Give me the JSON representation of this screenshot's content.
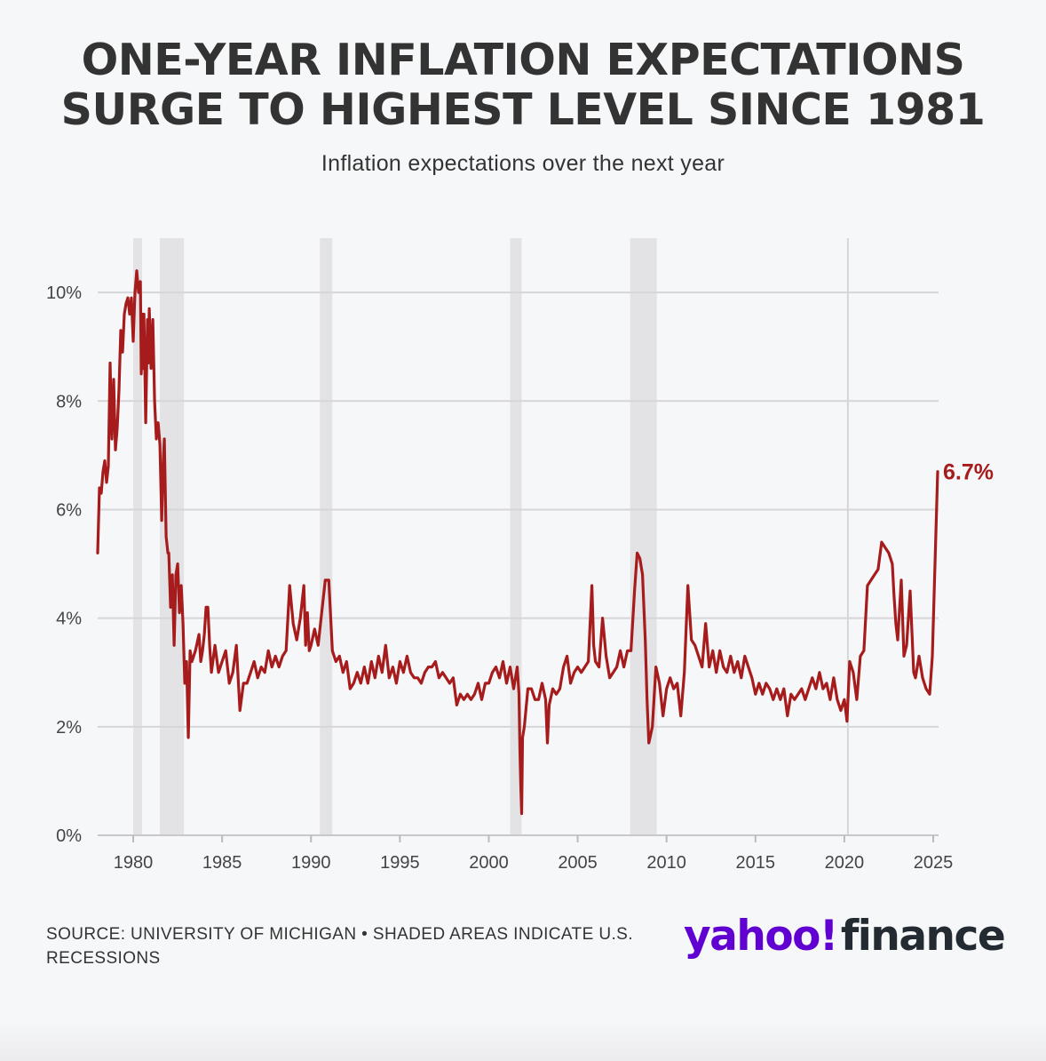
{
  "title_lines": [
    "ONE-YEAR INFLATION EXPECTATIONS",
    "SURGE TO HIGHEST LEVEL SINCE 1981"
  ],
  "subtitle": "Inflation expectations over the next year",
  "footer": {
    "source": "SOURCE: UNIVERSITY OF MICHIGAN • SHADED AREAS INDICATE U.S. RECESSIONS"
  },
  "logo": {
    "left": "yahoo!",
    "right": "finance"
  },
  "colors": {
    "line": "#a61c1c",
    "recession": "#e3e3e5",
    "grid": "#d6d6d8",
    "text": "#333333",
    "logo_purple": "#6001d2"
  },
  "chart_data": {
    "type": "line",
    "title": "ONE-YEAR INFLATION EXPECTATIONS SURGE TO HIGHEST LEVEL SINCE 1981",
    "subtitle": "Inflation expectations over the next year",
    "xlabel": "",
    "ylabel": "",
    "xlim": [
      1978,
      2025.3
    ],
    "ylim": [
      0,
      11
    ],
    "x_ticks": [
      1980,
      1985,
      1990,
      1995,
      2000,
      2005,
      2010,
      2015,
      2020,
      2025
    ],
    "y_ticks": [
      0,
      2,
      4,
      6,
      8,
      10
    ],
    "y_tick_labels": [
      "0%",
      "2%",
      "4%",
      "6%",
      "8%",
      "10%"
    ],
    "grid": true,
    "reference_year_line": 2020.2,
    "recessions": [
      [
        1980.0,
        1980.5
      ],
      [
        1981.5,
        1982.85
      ],
      [
        1990.5,
        1991.2
      ],
      [
        2001.2,
        2001.85
      ],
      [
        2007.95,
        2009.45
      ]
    ],
    "annotation": {
      "label": "6.7%",
      "x": 2025.25,
      "y": 6.7
    },
    "series": [
      {
        "name": "One-year inflation expectations",
        "points": [
          [
            1978.0,
            5.2
          ],
          [
            1978.1,
            6.4
          ],
          [
            1978.2,
            6.3
          ],
          [
            1978.3,
            6.7
          ],
          [
            1978.4,
            6.9
          ],
          [
            1978.5,
            6.5
          ],
          [
            1978.6,
            6.8
          ],
          [
            1978.7,
            8.7
          ],
          [
            1978.8,
            7.3
          ],
          [
            1978.9,
            8.4
          ],
          [
            1979.0,
            7.1
          ],
          [
            1979.1,
            7.5
          ],
          [
            1979.2,
            8.2
          ],
          [
            1979.3,
            9.3
          ],
          [
            1979.4,
            8.9
          ],
          [
            1979.5,
            9.6
          ],
          [
            1979.6,
            9.8
          ],
          [
            1979.7,
            9.9
          ],
          [
            1979.8,
            9.6
          ],
          [
            1979.9,
            9.9
          ],
          [
            1980.0,
            9.1
          ],
          [
            1980.1,
            10.0
          ],
          [
            1980.2,
            10.4
          ],
          [
            1980.3,
            10.0
          ],
          [
            1980.4,
            10.2
          ],
          [
            1980.45,
            8.5
          ],
          [
            1980.5,
            9.6
          ],
          [
            1980.55,
            8.6
          ],
          [
            1980.6,
            9.6
          ],
          [
            1980.7,
            7.6
          ],
          [
            1980.8,
            9.5
          ],
          [
            1980.85,
            8.7
          ],
          [
            1980.9,
            9.7
          ],
          [
            1981.0,
            8.6
          ],
          [
            1981.1,
            9.5
          ],
          [
            1981.2,
            8.0
          ],
          [
            1981.3,
            7.3
          ],
          [
            1981.4,
            7.6
          ],
          [
            1981.5,
            7.2
          ],
          [
            1981.6,
            5.8
          ],
          [
            1981.7,
            7.0
          ],
          [
            1981.75,
            7.3
          ],
          [
            1981.85,
            5.5
          ],
          [
            1981.95,
            5.2
          ],
          [
            1982.0,
            5.2
          ],
          [
            1982.1,
            4.2
          ],
          [
            1982.2,
            4.8
          ],
          [
            1982.3,
            3.5
          ],
          [
            1982.4,
            4.8
          ],
          [
            1982.5,
            5.0
          ],
          [
            1982.6,
            4.1
          ],
          [
            1982.7,
            4.6
          ],
          [
            1982.8,
            3.9
          ],
          [
            1982.9,
            2.8
          ],
          [
            1983.0,
            3.2
          ],
          [
            1983.1,
            1.8
          ],
          [
            1983.2,
            3.4
          ],
          [
            1983.3,
            3.2
          ],
          [
            1983.5,
            3.4
          ],
          [
            1983.7,
            3.7
          ],
          [
            1983.8,
            3.2
          ],
          [
            1983.9,
            3.4
          ],
          [
            1984.0,
            3.7
          ],
          [
            1984.1,
            4.2
          ],
          [
            1984.2,
            4.2
          ],
          [
            1984.3,
            3.5
          ],
          [
            1984.4,
            3.0
          ],
          [
            1984.6,
            3.5
          ],
          [
            1984.8,
            3.0
          ],
          [
            1985.0,
            3.2
          ],
          [
            1985.2,
            3.4
          ],
          [
            1985.4,
            2.8
          ],
          [
            1985.6,
            3.0
          ],
          [
            1985.8,
            3.5
          ],
          [
            1985.9,
            2.9
          ],
          [
            1986.0,
            2.3
          ],
          [
            1986.2,
            2.8
          ],
          [
            1986.4,
            2.8
          ],
          [
            1986.6,
            3.0
          ],
          [
            1986.8,
            3.2
          ],
          [
            1987.0,
            2.9
          ],
          [
            1987.2,
            3.1
          ],
          [
            1987.4,
            3.0
          ],
          [
            1987.6,
            3.4
          ],
          [
            1987.8,
            3.1
          ],
          [
            1988.0,
            3.3
          ],
          [
            1988.2,
            3.1
          ],
          [
            1988.4,
            3.3
          ],
          [
            1988.6,
            3.4
          ],
          [
            1988.8,
            4.6
          ],
          [
            1989.0,
            3.9
          ],
          [
            1989.2,
            3.6
          ],
          [
            1989.4,
            4.0
          ],
          [
            1989.6,
            4.6
          ],
          [
            1989.7,
            3.5
          ],
          [
            1989.8,
            4.1
          ],
          [
            1989.9,
            3.4
          ],
          [
            1990.0,
            3.5
          ],
          [
            1990.2,
            3.8
          ],
          [
            1990.4,
            3.5
          ],
          [
            1990.6,
            4.1
          ],
          [
            1990.8,
            4.7
          ],
          [
            1991.0,
            4.7
          ],
          [
            1991.2,
            3.4
          ],
          [
            1991.4,
            3.2
          ],
          [
            1991.6,
            3.3
          ],
          [
            1991.8,
            3.0
          ],
          [
            1992.0,
            3.2
          ],
          [
            1992.2,
            2.7
          ],
          [
            1992.4,
            2.8
          ],
          [
            1992.6,
            3.0
          ],
          [
            1992.8,
            2.8
          ],
          [
            1993.0,
            3.1
          ],
          [
            1993.2,
            2.8
          ],
          [
            1993.4,
            3.2
          ],
          [
            1993.6,
            2.9
          ],
          [
            1993.8,
            3.3
          ],
          [
            1994.0,
            3.0
          ],
          [
            1994.2,
            3.5
          ],
          [
            1994.4,
            2.9
          ],
          [
            1994.6,
            3.1
          ],
          [
            1994.8,
            2.8
          ],
          [
            1995.0,
            3.2
          ],
          [
            1995.2,
            3.0
          ],
          [
            1995.4,
            3.3
          ],
          [
            1995.6,
            3.0
          ],
          [
            1995.8,
            2.9
          ],
          [
            1996.0,
            2.9
          ],
          [
            1996.2,
            2.8
          ],
          [
            1996.4,
            3.0
          ],
          [
            1996.6,
            3.1
          ],
          [
            1996.8,
            3.1
          ],
          [
            1997.0,
            3.2
          ],
          [
            1997.2,
            2.9
          ],
          [
            1997.4,
            3.0
          ],
          [
            1997.6,
            2.9
          ],
          [
            1997.8,
            2.8
          ],
          [
            1998.0,
            2.9
          ],
          [
            1998.2,
            2.4
          ],
          [
            1998.4,
            2.6
          ],
          [
            1998.6,
            2.5
          ],
          [
            1998.8,
            2.6
          ],
          [
            1999.0,
            2.5
          ],
          [
            1999.2,
            2.6
          ],
          [
            1999.4,
            2.8
          ],
          [
            1999.6,
            2.5
          ],
          [
            1999.8,
            2.8
          ],
          [
            2000.0,
            2.8
          ],
          [
            2000.2,
            3.0
          ],
          [
            2000.4,
            3.1
          ],
          [
            2000.6,
            2.9
          ],
          [
            2000.8,
            3.2
          ],
          [
            2001.0,
            2.8
          ],
          [
            2001.2,
            3.1
          ],
          [
            2001.4,
            2.7
          ],
          [
            2001.6,
            3.1
          ],
          [
            2001.7,
            2.6
          ],
          [
            2001.75,
            1.6
          ],
          [
            2001.8,
            0.9
          ],
          [
            2001.85,
            0.4
          ],
          [
            2001.9,
            1.8
          ],
          [
            2002.0,
            2.0
          ],
          [
            2002.2,
            2.7
          ],
          [
            2002.4,
            2.7
          ],
          [
            2002.6,
            2.5
          ],
          [
            2002.8,
            2.5
          ],
          [
            2003.0,
            2.8
          ],
          [
            2003.2,
            2.5
          ],
          [
            2003.3,
            1.7
          ],
          [
            2003.4,
            2.4
          ],
          [
            2003.6,
            2.7
          ],
          [
            2003.8,
            2.6
          ],
          [
            2004.0,
            2.7
          ],
          [
            2004.2,
            3.1
          ],
          [
            2004.4,
            3.3
          ],
          [
            2004.6,
            2.8
          ],
          [
            2004.8,
            3.0
          ],
          [
            2005.0,
            3.1
          ],
          [
            2005.2,
            3.0
          ],
          [
            2005.4,
            3.1
          ],
          [
            2005.6,
            3.2
          ],
          [
            2005.8,
            4.6
          ],
          [
            2005.9,
            3.5
          ],
          [
            2006.0,
            3.2
          ],
          [
            2006.2,
            3.1
          ],
          [
            2006.4,
            4.0
          ],
          [
            2006.6,
            3.3
          ],
          [
            2006.8,
            2.9
          ],
          [
            2007.0,
            3.0
          ],
          [
            2007.2,
            3.1
          ],
          [
            2007.4,
            3.4
          ],
          [
            2007.6,
            3.1
          ],
          [
            2007.8,
            3.4
          ],
          [
            2008.0,
            3.4
          ],
          [
            2008.2,
            4.5
          ],
          [
            2008.35,
            5.2
          ],
          [
            2008.5,
            5.1
          ],
          [
            2008.65,
            4.8
          ],
          [
            2008.8,
            3.6
          ],
          [
            2008.9,
            2.5
          ],
          [
            2009.0,
            1.7
          ],
          [
            2009.2,
            2.0
          ],
          [
            2009.4,
            3.1
          ],
          [
            2009.6,
            2.8
          ],
          [
            2009.8,
            2.2
          ],
          [
            2010.0,
            2.7
          ],
          [
            2010.2,
            2.9
          ],
          [
            2010.4,
            2.7
          ],
          [
            2010.6,
            2.8
          ],
          [
            2010.8,
            2.2
          ],
          [
            2011.0,
            3.0
          ],
          [
            2011.2,
            4.6
          ],
          [
            2011.4,
            3.6
          ],
          [
            2011.6,
            3.5
          ],
          [
            2011.8,
            3.3
          ],
          [
            2012.0,
            3.1
          ],
          [
            2012.2,
            3.9
          ],
          [
            2012.4,
            3.1
          ],
          [
            2012.6,
            3.4
          ],
          [
            2012.8,
            3.0
          ],
          [
            2013.0,
            3.4
          ],
          [
            2013.2,
            3.1
          ],
          [
            2013.4,
            3.0
          ],
          [
            2013.6,
            3.3
          ],
          [
            2013.8,
            3.0
          ],
          [
            2014.0,
            3.2
          ],
          [
            2014.2,
            2.9
          ],
          [
            2014.4,
            3.3
          ],
          [
            2014.6,
            3.1
          ],
          [
            2014.8,
            2.9
          ],
          [
            2015.0,
            2.6
          ],
          [
            2015.2,
            2.8
          ],
          [
            2015.4,
            2.6
          ],
          [
            2015.6,
            2.8
          ],
          [
            2015.8,
            2.7
          ],
          [
            2016.0,
            2.5
          ],
          [
            2016.2,
            2.7
          ],
          [
            2016.4,
            2.5
          ],
          [
            2016.6,
            2.7
          ],
          [
            2016.8,
            2.2
          ],
          [
            2017.0,
            2.6
          ],
          [
            2017.2,
            2.5
          ],
          [
            2017.4,
            2.6
          ],
          [
            2017.6,
            2.7
          ],
          [
            2017.8,
            2.5
          ],
          [
            2018.0,
            2.7
          ],
          [
            2018.2,
            2.9
          ],
          [
            2018.4,
            2.7
          ],
          [
            2018.6,
            3.0
          ],
          [
            2018.8,
            2.7
          ],
          [
            2019.0,
            2.8
          ],
          [
            2019.2,
            2.5
          ],
          [
            2019.4,
            2.9
          ],
          [
            2019.6,
            2.5
          ],
          [
            2019.8,
            2.3
          ],
          [
            2020.0,
            2.5
          ],
          [
            2020.15,
            2.1
          ],
          [
            2020.3,
            3.2
          ],
          [
            2020.5,
            3.0
          ],
          [
            2020.7,
            2.5
          ],
          [
            2020.9,
            3.3
          ],
          [
            2021.1,
            3.4
          ],
          [
            2021.3,
            4.6
          ],
          [
            2021.5,
            4.7
          ],
          [
            2021.7,
            4.8
          ],
          [
            2021.9,
            4.9
          ],
          [
            2022.1,
            5.4
          ],
          [
            2022.3,
            5.3
          ],
          [
            2022.5,
            5.2
          ],
          [
            2022.7,
            5.0
          ],
          [
            2022.8,
            4.4
          ],
          [
            2022.9,
            3.9
          ],
          [
            2023.0,
            3.6
          ],
          [
            2023.2,
            4.7
          ],
          [
            2023.35,
            3.3
          ],
          [
            2023.5,
            3.5
          ],
          [
            2023.7,
            4.5
          ],
          [
            2023.9,
            3.0
          ],
          [
            2024.0,
            2.9
          ],
          [
            2024.2,
            3.3
          ],
          [
            2024.4,
            2.9
          ],
          [
            2024.6,
            2.7
          ],
          [
            2024.8,
            2.6
          ],
          [
            2024.95,
            3.3
          ],
          [
            2025.1,
            5.0
          ],
          [
            2025.25,
            6.7
          ]
        ]
      }
    ]
  }
}
